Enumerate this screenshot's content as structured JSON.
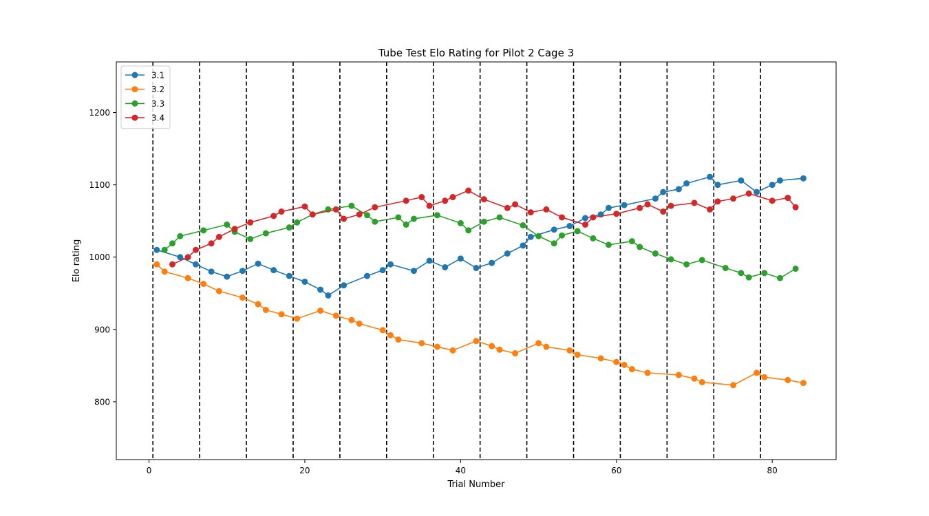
{
  "chart_data": {
    "type": "line",
    "title": "Tube Test Elo Rating for Pilot 2 Cage 3",
    "xlabel": "Trial Number",
    "ylabel": "Elo rating",
    "xlim": [
      -4.2,
      88.2
    ],
    "ylim": [
      720,
      1270
    ],
    "xticks": [
      0,
      20,
      40,
      60,
      80
    ],
    "yticks": [
      800,
      900,
      1000,
      1100,
      1200
    ],
    "grid": false,
    "legend_position": "top-left",
    "session_boundaries": [
      0.5,
      6.5,
      12.5,
      18.5,
      24.5,
      30.5,
      36.5,
      42.5,
      48.5,
      54.5,
      60.5,
      66.5,
      72.5,
      78.5
    ],
    "series": [
      {
        "name": "3.1",
        "color": "#1f77b4",
        "points": [
          [
            1,
            1010
          ],
          [
            4,
            1000
          ],
          [
            6,
            990
          ],
          [
            8,
            980
          ],
          [
            10,
            973
          ],
          [
            12,
            981
          ],
          [
            14,
            991
          ],
          [
            16,
            982
          ],
          [
            18,
            974
          ],
          [
            20,
            966
          ],
          [
            22,
            955
          ],
          [
            23,
            947
          ],
          [
            25,
            961
          ],
          [
            28,
            974
          ],
          [
            30,
            982
          ],
          [
            31,
            990
          ],
          [
            34,
            981
          ],
          [
            36,
            995
          ],
          [
            38,
            986
          ],
          [
            40,
            998
          ],
          [
            42,
            985
          ],
          [
            44,
            992
          ],
          [
            46,
            1005
          ],
          [
            48,
            1016
          ],
          [
            49,
            1028
          ],
          [
            52,
            1038
          ],
          [
            54,
            1043
          ],
          [
            56,
            1054
          ],
          [
            58,
            1059
          ],
          [
            59,
            1068
          ],
          [
            61,
            1072
          ],
          [
            65,
            1081
          ],
          [
            66,
            1090
          ],
          [
            68,
            1094
          ],
          [
            69,
            1102
          ],
          [
            72,
            1111
          ],
          [
            73,
            1100
          ],
          [
            76,
            1106
          ],
          [
            78,
            1090
          ],
          [
            80,
            1100
          ],
          [
            81,
            1106
          ],
          [
            84,
            1109
          ]
        ]
      },
      {
        "name": "3.2",
        "color": "#ff7f0e",
        "points": [
          [
            1,
            990
          ],
          [
            2,
            980
          ],
          [
            5,
            971
          ],
          [
            7,
            963
          ],
          [
            9,
            953
          ],
          [
            12,
            944
          ],
          [
            14,
            935
          ],
          [
            15,
            927
          ],
          [
            17,
            921
          ],
          [
            19,
            915
          ],
          [
            22,
            926
          ],
          [
            24,
            919
          ],
          [
            26,
            913
          ],
          [
            27,
            908
          ],
          [
            30,
            899
          ],
          [
            31,
            892
          ],
          [
            32,
            886
          ],
          [
            35,
            881
          ],
          [
            37,
            876
          ],
          [
            39,
            871
          ],
          [
            42,
            884
          ],
          [
            44,
            877
          ],
          [
            45,
            872
          ],
          [
            47,
            867
          ],
          [
            50,
            881
          ],
          [
            51,
            876
          ],
          [
            54,
            871
          ],
          [
            55,
            865
          ],
          [
            58,
            860
          ],
          [
            60,
            855
          ],
          [
            61,
            851
          ],
          [
            62,
            845
          ],
          [
            64,
            840
          ],
          [
            68,
            837
          ],
          [
            70,
            832
          ],
          [
            71,
            827
          ],
          [
            75,
            823
          ],
          [
            78,
            840
          ],
          [
            79,
            834
          ],
          [
            82,
            830
          ],
          [
            84,
            826
          ]
        ]
      },
      {
        "name": "3.3",
        "color": "#2ca02c",
        "points": [
          [
            2,
            1010
          ],
          [
            3,
            1019
          ],
          [
            4,
            1029
          ],
          [
            7,
            1037
          ],
          [
            10,
            1045
          ],
          [
            11,
            1035
          ],
          [
            13,
            1025
          ],
          [
            15,
            1033
          ],
          [
            18,
            1041
          ],
          [
            19,
            1048
          ],
          [
            21,
            1059
          ],
          [
            23,
            1066
          ],
          [
            26,
            1071
          ],
          [
            28,
            1058
          ],
          [
            29,
            1049
          ],
          [
            32,
            1055
          ],
          [
            33,
            1045
          ],
          [
            34,
            1053
          ],
          [
            37,
            1058
          ],
          [
            40,
            1047
          ],
          [
            41,
            1037
          ],
          [
            43,
            1049
          ],
          [
            45,
            1055
          ],
          [
            48,
            1044
          ],
          [
            50,
            1029
          ],
          [
            52,
            1019
          ],
          [
            53,
            1030
          ],
          [
            55,
            1036
          ],
          [
            57,
            1026
          ],
          [
            59,
            1017
          ],
          [
            62,
            1022
          ],
          [
            63,
            1014
          ],
          [
            65,
            1005
          ],
          [
            67,
            997
          ],
          [
            69,
            990
          ],
          [
            71,
            996
          ],
          [
            74,
            985
          ],
          [
            76,
            978
          ],
          [
            77,
            972
          ],
          [
            79,
            978
          ],
          [
            81,
            971
          ],
          [
            83,
            984
          ]
        ]
      },
      {
        "name": "3.4",
        "color": "#d62728",
        "points": [
          [
            3,
            990
          ],
          [
            5,
            1000
          ],
          [
            6,
            1010
          ],
          [
            8,
            1019
          ],
          [
            9,
            1028
          ],
          [
            11,
            1039
          ],
          [
            13,
            1048
          ],
          [
            16,
            1057
          ],
          [
            17,
            1063
          ],
          [
            20,
            1070
          ],
          [
            21,
            1059
          ],
          [
            24,
            1066
          ],
          [
            25,
            1053
          ],
          [
            27,
            1059
          ],
          [
            29,
            1069
          ],
          [
            33,
            1078
          ],
          [
            35,
            1083
          ],
          [
            36,
            1071
          ],
          [
            38,
            1078
          ],
          [
            39,
            1083
          ],
          [
            41,
            1092
          ],
          [
            43,
            1080
          ],
          [
            46,
            1068
          ],
          [
            47,
            1073
          ],
          [
            49,
            1062
          ],
          [
            51,
            1066
          ],
          [
            53,
            1055
          ],
          [
            56,
            1045
          ],
          [
            57,
            1055
          ],
          [
            60,
            1060
          ],
          [
            63,
            1068
          ],
          [
            64,
            1073
          ],
          [
            66,
            1063
          ],
          [
            67,
            1071
          ],
          [
            70,
            1075
          ],
          [
            72,
            1066
          ],
          [
            73,
            1077
          ],
          [
            75,
            1081
          ],
          [
            77,
            1088
          ],
          [
            80,
            1078
          ],
          [
            82,
            1082
          ],
          [
            83,
            1069
          ]
        ]
      }
    ]
  }
}
